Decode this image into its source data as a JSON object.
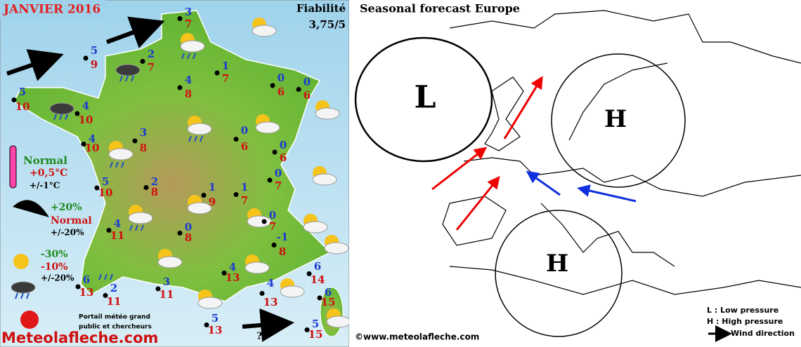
{
  "header": {
    "title": "JANVIER 2016",
    "reliability_label": "Fiabilité",
    "reliability": "3,75/5"
  },
  "legend": {
    "temp": {
      "trend": "Normal",
      "value": "+0,5°C",
      "range": "+/-1°C"
    },
    "rain": {
      "trend": "+20%",
      "value": "Normal",
      "range": "+/-20%"
    },
    "sun": {
      "trend": "-30%",
      "value": "-10%",
      "range": "+/-20%"
    }
  },
  "cities": [
    {
      "min": 3,
      "max": 7
    },
    {
      "min": 5,
      "max": 9
    },
    {
      "min": 2,
      "max": 7
    },
    {
      "min": 1,
      "max": 7
    },
    {
      "min": 5,
      "max": 10
    },
    {
      "min": 4,
      "max": 8
    },
    {
      "min": 0,
      "max": 6
    },
    {
      "min": 0,
      "max": 6
    },
    {
      "min": 4,
      "max": 10
    },
    {
      "min": 0,
      "max": 6
    },
    {
      "min": 3,
      "max": 8
    },
    {
      "min": 4,
      "max": 10
    },
    {
      "min": 0,
      "max": 6
    },
    {
      "min": 5,
      "max": 10
    },
    {
      "min": 2,
      "max": 8
    },
    {
      "min": 1,
      "max": 9
    },
    {
      "min": 1,
      "max": 7
    },
    {
      "min": 0,
      "max": 7
    },
    {
      "min": 0,
      "max": 7
    },
    {
      "min": 4,
      "max": 11
    },
    {
      "min": 0,
      "max": 8
    },
    {
      "min": -1,
      "max": 8
    },
    {
      "min": 4,
      "max": 13
    },
    {
      "min": 6,
      "max": 14
    },
    {
      "min": 6,
      "max": 13
    },
    {
      "min": 2,
      "max": 11
    },
    {
      "min": 3,
      "max": 11
    },
    {
      "min": 4,
      "max": 13
    },
    {
      "min": 6,
      "max": 15
    },
    {
      "min": 5,
      "max": 13
    },
    {
      "min": 5,
      "max": 15
    }
  ],
  "wind_unknown": "?",
  "brand": {
    "tagline_1": "Portail météo grand",
    "tagline_2": "public et chercheurs",
    "logo": "Meteolafleche.com"
  },
  "europe": {
    "title": "Seasonal  forecast Europe",
    "low": "L",
    "high_north": "H",
    "high_south": "H",
    "legend_low": "L : Low pressure",
    "legend_high": "H : High pressure",
    "legend_wind": "Wind direction",
    "copyright": "©www.meteolafleche.com"
  }
}
